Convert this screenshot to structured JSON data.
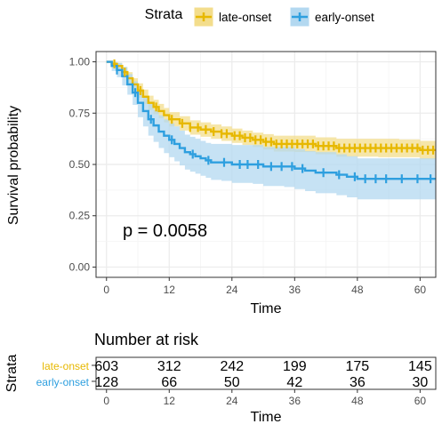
{
  "chart_data": [
    {
      "type": "line",
      "subtype": "kaplan-meier survival curve",
      "legend": {
        "title": "Strata",
        "position": "top"
      },
      "xlabel": "Time",
      "ylabel": "Survival probability",
      "xlim": [
        -2,
        63
      ],
      "ylim": [
        0,
        1.0
      ],
      "xticks": [
        0,
        12,
        24,
        36,
        48,
        60
      ],
      "yticks": [
        0.0,
        0.25,
        0.5,
        0.75,
        1.0
      ],
      "xtick_labels": [
        "0",
        "12",
        "24",
        "36",
        "48",
        "60"
      ],
      "ytick_labels": [
        "0.00",
        "0.25",
        "0.50",
        "0.75",
        "1.00"
      ],
      "grid": true,
      "annotation": "p = 0.0058",
      "series": [
        {
          "name": "late-onset",
          "color": "#E7B800",
          "band_color": "#F3DD8C",
          "points": [
            [
              0,
              1.0
            ],
            [
              1,
              0.99
            ],
            [
              2,
              0.98
            ],
            [
              3,
              0.95
            ],
            [
              4,
              0.92
            ],
            [
              5,
              0.89
            ],
            [
              6,
              0.86
            ],
            [
              7,
              0.83
            ],
            [
              8,
              0.8
            ],
            [
              9,
              0.78
            ],
            [
              10,
              0.76
            ],
            [
              11,
              0.74
            ],
            [
              12,
              0.72
            ],
            [
              14,
              0.7
            ],
            [
              16,
              0.68
            ],
            [
              18,
              0.67
            ],
            [
              20,
              0.66
            ],
            [
              22,
              0.65
            ],
            [
              24,
              0.64
            ],
            [
              26,
              0.63
            ],
            [
              28,
              0.62
            ],
            [
              30,
              0.61
            ],
            [
              32,
              0.6
            ],
            [
              36,
              0.6
            ],
            [
              40,
              0.59
            ],
            [
              44,
              0.58
            ],
            [
              48,
              0.58
            ],
            [
              52,
              0.58
            ],
            [
              56,
              0.58
            ],
            [
              60,
              0.57
            ],
            [
              63,
              0.57
            ]
          ],
          "ci_upper": [
            [
              0,
              1.0
            ],
            [
              1,
              1.0
            ],
            [
              2,
              0.995
            ],
            [
              3,
              0.975
            ],
            [
              4,
              0.95
            ],
            [
              5,
              0.92
            ],
            [
              6,
              0.895
            ],
            [
              7,
              0.865
            ],
            [
              8,
              0.835
            ],
            [
              9,
              0.815
            ],
            [
              10,
              0.795
            ],
            [
              11,
              0.775
            ],
            [
              12,
              0.755
            ],
            [
              14,
              0.735
            ],
            [
              16,
              0.715
            ],
            [
              18,
              0.705
            ],
            [
              20,
              0.695
            ],
            [
              22,
              0.685
            ],
            [
              24,
              0.675
            ],
            [
              26,
              0.665
            ],
            [
              28,
              0.655
            ],
            [
              30,
              0.648
            ],
            [
              32,
              0.64
            ],
            [
              36,
              0.64
            ],
            [
              40,
              0.632
            ],
            [
              44,
              0.625
            ],
            [
              48,
              0.625
            ],
            [
              52,
              0.625
            ],
            [
              56,
              0.622
            ],
            [
              60,
              0.615
            ],
            [
              63,
              0.615
            ]
          ],
          "ci_lower": [
            [
              0,
              1.0
            ],
            [
              1,
              0.98
            ],
            [
              2,
              0.965
            ],
            [
              3,
              0.925
            ],
            [
              4,
              0.89
            ],
            [
              5,
              0.86
            ],
            [
              6,
              0.825
            ],
            [
              7,
              0.795
            ],
            [
              8,
              0.765
            ],
            [
              9,
              0.745
            ],
            [
              10,
              0.725
            ],
            [
              11,
              0.705
            ],
            [
              12,
              0.685
            ],
            [
              14,
              0.665
            ],
            [
              16,
              0.645
            ],
            [
              18,
              0.635
            ],
            [
              20,
              0.625
            ],
            [
              22,
              0.615
            ],
            [
              24,
              0.605
            ],
            [
              26,
              0.595
            ],
            [
              28,
              0.585
            ],
            [
              30,
              0.573
            ],
            [
              32,
              0.563
            ],
            [
              36,
              0.56
            ],
            [
              40,
              0.55
            ],
            [
              44,
              0.538
            ],
            [
              48,
              0.538
            ],
            [
              52,
              0.535
            ],
            [
              56,
              0.535
            ],
            [
              60,
              0.525
            ],
            [
              63,
              0.525
            ]
          ],
          "censor_times": [
            1.5,
            3.5,
            6.5,
            9.5,
            12.5,
            14.5,
            16,
            17.5,
            19,
            20.5,
            22,
            23,
            24.5,
            25.5,
            26.5,
            27.5,
            28.5,
            29.5,
            30.5,
            31.5,
            32.5,
            33.5,
            34.5,
            35.5,
            36.5,
            37.5,
            38.5,
            39.5,
            40.5,
            41.5,
            42.5,
            43.5,
            44.5,
            45.5,
            46.5,
            47.5,
            48.5,
            49.5,
            50.5,
            51.5,
            52.5,
            53.5,
            54.5,
            55.5,
            56.5,
            57.5,
            58.5,
            59.5,
            60.5,
            61.5,
            62.5
          ]
        },
        {
          "name": "early-onset",
          "color": "#2E9FDF",
          "band_color": "#B3D8F0",
          "points": [
            [
              0,
              1.0
            ],
            [
              1,
              0.98
            ],
            [
              2,
              0.96
            ],
            [
              3,
              0.93
            ],
            [
              4,
              0.89
            ],
            [
              5,
              0.85
            ],
            [
              6,
              0.8
            ],
            [
              7,
              0.76
            ],
            [
              8,
              0.72
            ],
            [
              9,
              0.69
            ],
            [
              10,
              0.66
            ],
            [
              11,
              0.64
            ],
            [
              12,
              0.62
            ],
            [
              13,
              0.6
            ],
            [
              14,
              0.58
            ],
            [
              15,
              0.56
            ],
            [
              16,
              0.55
            ],
            [
              17,
              0.54
            ],
            [
              18,
              0.53
            ],
            [
              19,
              0.52
            ],
            [
              20,
              0.51
            ],
            [
              22,
              0.51
            ],
            [
              24,
              0.5
            ],
            [
              28,
              0.5
            ],
            [
              30,
              0.49
            ],
            [
              34,
              0.49
            ],
            [
              36,
              0.48
            ],
            [
              38,
              0.47
            ],
            [
              40,
              0.46
            ],
            [
              44,
              0.45
            ],
            [
              46,
              0.44
            ],
            [
              48,
              0.43
            ],
            [
              55,
              0.43
            ],
            [
              60,
              0.43
            ],
            [
              63,
              0.43
            ]
          ],
          "ci_upper": [
            [
              0,
              1.0
            ],
            [
              1,
              1.0
            ],
            [
              2,
              0.995
            ],
            [
              3,
              0.975
            ],
            [
              4,
              0.94
            ],
            [
              5,
              0.905
            ],
            [
              6,
              0.865
            ],
            [
              7,
              0.83
            ],
            [
              8,
              0.795
            ],
            [
              9,
              0.765
            ],
            [
              10,
              0.74
            ],
            [
              11,
              0.72
            ],
            [
              12,
              0.7
            ],
            [
              13,
              0.685
            ],
            [
              14,
              0.665
            ],
            [
              15,
              0.645
            ],
            [
              16,
              0.635
            ],
            [
              17,
              0.625
            ],
            [
              18,
              0.615
            ],
            [
              19,
              0.605
            ],
            [
              20,
              0.6
            ],
            [
              22,
              0.6
            ],
            [
              24,
              0.595
            ],
            [
              28,
              0.595
            ],
            [
              30,
              0.585
            ],
            [
              34,
              0.585
            ],
            [
              36,
              0.575
            ],
            [
              38,
              0.565
            ],
            [
              40,
              0.56
            ],
            [
              44,
              0.55
            ],
            [
              46,
              0.54
            ],
            [
              48,
              0.53
            ],
            [
              55,
              0.53
            ],
            [
              60,
              0.53
            ],
            [
              63,
              0.53
            ]
          ],
          "ci_lower": [
            [
              0,
              1.0
            ],
            [
              1,
              0.955
            ],
            [
              2,
              0.925
            ],
            [
              3,
              0.885
            ],
            [
              4,
              0.84
            ],
            [
              5,
              0.79
            ],
            [
              6,
              0.73
            ],
            [
              7,
              0.685
            ],
            [
              8,
              0.64
            ],
            [
              9,
              0.61
            ],
            [
              10,
              0.58
            ],
            [
              11,
              0.555
            ],
            [
              12,
              0.535
            ],
            [
              13,
              0.515
            ],
            [
              14,
              0.495
            ],
            [
              15,
              0.475
            ],
            [
              16,
              0.465
            ],
            [
              17,
              0.455
            ],
            [
              18,
              0.445
            ],
            [
              19,
              0.435
            ],
            [
              20,
              0.425
            ],
            [
              22,
              0.42
            ],
            [
              24,
              0.41
            ],
            [
              28,
              0.405
            ],
            [
              30,
              0.395
            ],
            [
              34,
              0.39
            ],
            [
              36,
              0.38
            ],
            [
              38,
              0.37
            ],
            [
              40,
              0.36
            ],
            [
              44,
              0.35
            ],
            [
              46,
              0.34
            ],
            [
              48,
              0.33
            ],
            [
              55,
              0.33
            ],
            [
              60,
              0.33
            ],
            [
              63,
              0.33
            ]
          ],
          "censor_times": [
            2,
            5.5,
            8.5,
            12.5,
            16.5,
            19.5,
            22.5,
            25.5,
            27,
            29,
            31.5,
            33.5,
            35.5,
            37.5,
            41.5,
            44.5,
            47.5,
            49.5,
            51.5,
            53.5,
            56.5,
            59.5,
            62
          ]
        }
      ]
    },
    {
      "type": "table",
      "title": "Number at risk",
      "ylabel": "Strata",
      "xlabel": "Time",
      "xlim": [
        -2,
        63
      ],
      "times": [
        0,
        12,
        24,
        36,
        48,
        60
      ],
      "time_labels": [
        "0",
        "12",
        "24",
        "36",
        "48",
        "60"
      ],
      "rows": [
        {
          "name": "late-onset",
          "color": "#E7B800",
          "values": [
            "603",
            "312",
            "242",
            "199",
            "175",
            "145"
          ]
        },
        {
          "name": "early-onset",
          "color": "#2E9FDF",
          "values": [
            "128",
            "66",
            "50",
            "42",
            "36",
            "30"
          ]
        }
      ]
    }
  ]
}
